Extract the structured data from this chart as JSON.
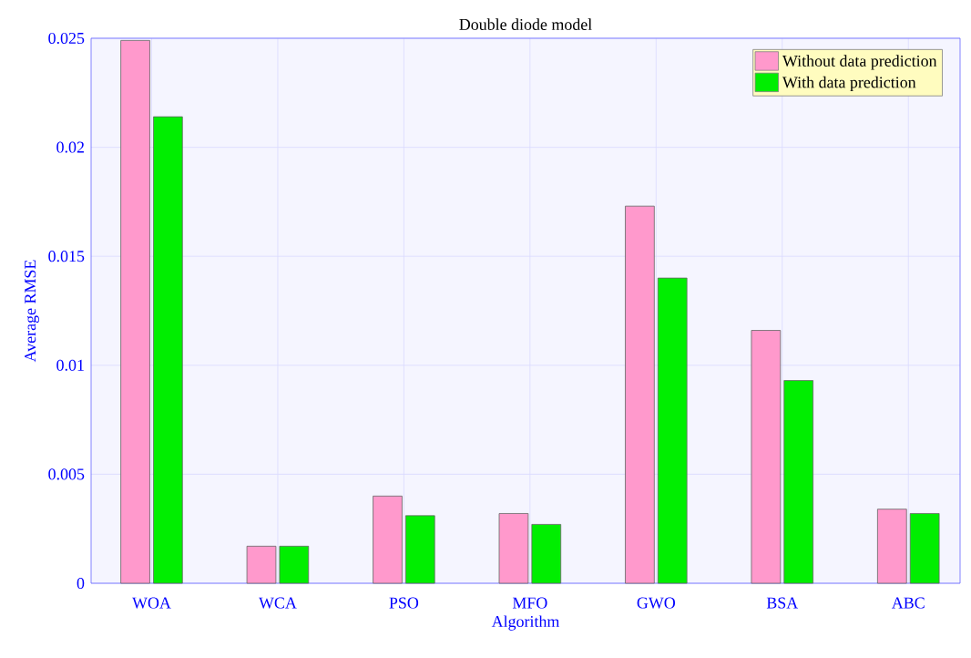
{
  "chart_data": {
    "type": "bar",
    "title": "Double diode model",
    "xlabel": "Algorithm",
    "ylabel": "Average RMSE",
    "categories": [
      "WOA",
      "WCA",
      "PSO",
      "MFO",
      "GWO",
      "BSA",
      "ABC"
    ],
    "series": [
      {
        "name": "Without data prediction",
        "color": "#ff99cc",
        "values": [
          0.0249,
          0.0017,
          0.004,
          0.0032,
          0.0173,
          0.0116,
          0.0034
        ]
      },
      {
        "name": "With data prediction",
        "color": "#00ee00",
        "values": [
          0.0214,
          0.0017,
          0.0031,
          0.0027,
          0.014,
          0.0093,
          0.0032
        ]
      }
    ],
    "ylim": [
      0,
      0.025
    ],
    "yticks": [
      0,
      0.005,
      0.01,
      0.015,
      0.02,
      0.025
    ],
    "grid": true,
    "legend": "top right"
  }
}
